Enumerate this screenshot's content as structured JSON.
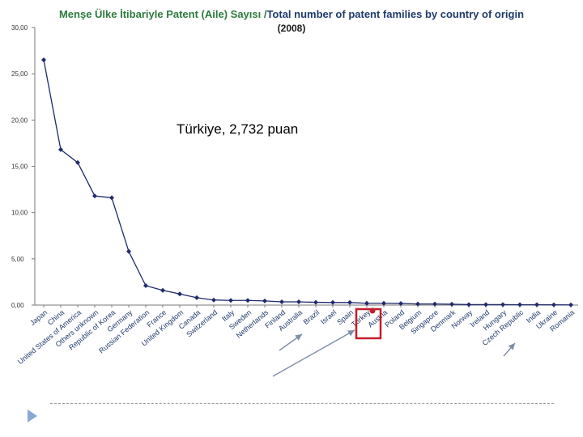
{
  "title": {
    "turkish": "Menşe Ülke İtibariyle Patent (Aile) Sayısı /",
    "english": "Total number of patent families by country of origin",
    "year": "(2008)"
  },
  "annotation": "Türkiye, 2,732 puan",
  "colors": {
    "series": "#1f2a6b",
    "axis": "#7a7a7a",
    "title_turkish": "#2d7a3e",
    "title_english": "#1f3a6b",
    "highlight_box": "#c0202a",
    "highlight_dot": "#c0202a",
    "arrow": "#7f8fa6"
  },
  "chart_data": {
    "type": "line",
    "ylim": [
      0,
      30
    ],
    "yticks": [
      0,
      5,
      10,
      15,
      20,
      25,
      30
    ],
    "ytick_labels": [
      "0,00",
      "5,00",
      "10,00",
      "15,00",
      "20,00",
      "25,00",
      "30,00"
    ],
    "grid": false,
    "categories": [
      "Japan",
      "China",
      "United States of America",
      "Others unknown",
      "Republic of Korea",
      "Germany",
      "Russian Federation",
      "France",
      "United Kingdom",
      "Canada",
      "Switzerland",
      "Italy",
      "Sweden",
      "Netherlands",
      "Finland",
      "Australia",
      "Brazil",
      "Israel",
      "Spain",
      "Turkey",
      "Austria",
      "Poland",
      "Belgium",
      "Singapore",
      "Denmark",
      "Norway",
      "Ireland",
      "Hungary",
      "Czech Republic",
      "India",
      "Ukraine",
      "Romania"
    ],
    "series": [
      {
        "values": [
          26.5,
          16.8,
          15.4,
          11.8,
          11.6,
          5.8,
          2.1,
          1.6,
          1.2,
          0.8,
          0.55,
          0.5,
          0.5,
          0.45,
          0.35,
          0.35,
          0.3,
          0.28,
          0.28,
          0.2,
          0.2,
          0.18,
          0.12,
          0.12,
          0.1,
          0.05,
          0.05,
          0.05,
          0.04,
          0.04,
          0.03,
          0.02
        ]
      }
    ],
    "highlight_category": "Turkey"
  }
}
